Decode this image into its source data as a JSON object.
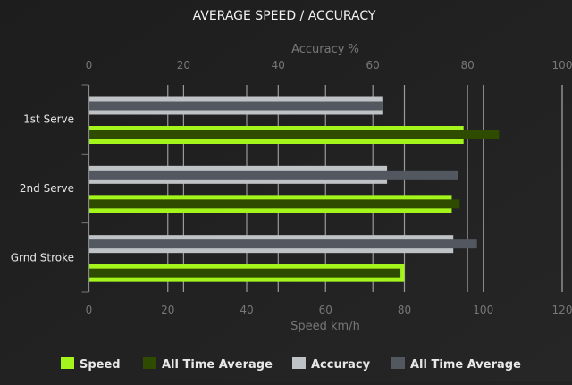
{
  "chart_data": {
    "type": "bar",
    "orientation": "horizontal",
    "title": "AVERAGE SPEED / ACCURACY",
    "categories": [
      "1st Serve",
      "2nd Serve",
      "Grnd Stroke"
    ],
    "top_axis": {
      "label": "Accuracy %",
      "range": [
        0,
        100
      ],
      "ticks": [
        0,
        20,
        40,
        60,
        80,
        100
      ]
    },
    "bottom_axis": {
      "label": "Speed km/h",
      "range": [
        0,
        120
      ],
      "ticks": [
        0,
        20,
        40,
        60,
        80,
        100,
        120
      ]
    },
    "grid": true,
    "legend_position": "bottom",
    "series": [
      {
        "name": "Speed",
        "axis": "bottom",
        "values": [
          95,
          92,
          80
        ],
        "color": "#a4f51c"
      },
      {
        "name": "All Time Average",
        "axis": "bottom",
        "values": [
          104,
          94,
          79
        ],
        "color": "#2f4b00"
      },
      {
        "name": "Accuracy",
        "axis": "top",
        "values": [
          62,
          63,
          77
        ],
        "color": "#bfc3c6"
      },
      {
        "name": "All Time Average",
        "axis": "top",
        "values": [
          62,
          78,
          82
        ],
        "color": "#535860"
      }
    ]
  }
}
